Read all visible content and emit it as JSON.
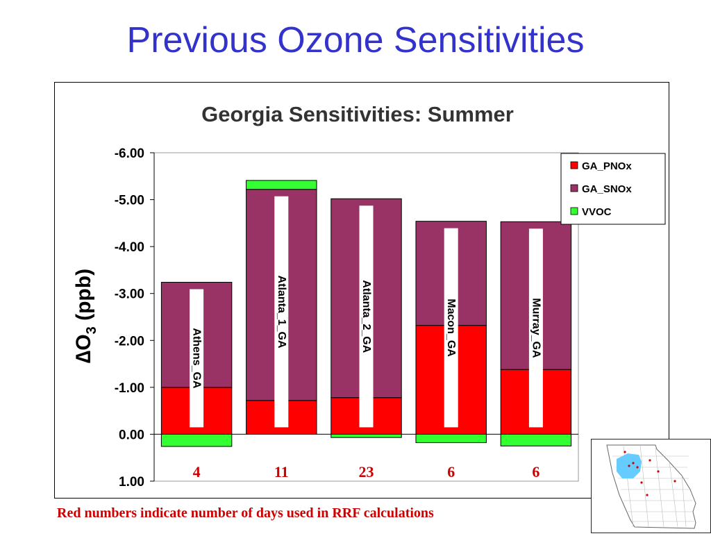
{
  "slide": {
    "title": "Previous Ozone Sensitivities",
    "footnote": "Red numbers indicate number of days used in RRF calculations"
  },
  "chart_data": {
    "type": "bar",
    "stacked": true,
    "title": "Georgia Sensitivities: Summer",
    "ylabel_prefix": "∆O",
    "ylabel_sub": "3",
    "ylabel_suffix": " (ppb)",
    "xlabel": "",
    "y_inverted": true,
    "ylim": [
      1.0,
      -6.0
    ],
    "yticks": [
      "-6.00",
      "-5.00",
      "-4.00",
      "-3.00",
      "-2.00",
      "-1.00",
      "0.00",
      "1.00"
    ],
    "ytick_values": [
      -6,
      -5,
      -4,
      -3,
      -2,
      -1,
      0,
      1
    ],
    "grid": false,
    "legend_position": "top-right",
    "categories": [
      "Athens_GA",
      "Atlanta_1_GA",
      "Atlanta_2_GA",
      "Macon_GA",
      "Murray_GA"
    ],
    "day_counts": [
      "4",
      "11",
      "23",
      "6",
      "6"
    ],
    "day_count_color": "#cc0000",
    "series": [
      {
        "name": "GA_PNOx",
        "color": "#ff0000",
        "values": [
          -1.0,
          -0.72,
          -0.78,
          -2.32,
          -1.38
        ]
      },
      {
        "name": "GA_SNOx",
        "color": "#993366",
        "values": [
          -2.24,
          -4.5,
          -4.24,
          -2.22,
          -3.15
        ]
      },
      {
        "name": "VVOC",
        "color": "#33ff33",
        "values": [
          0.26,
          -0.19,
          0.07,
          0.18,
          0.25
        ]
      }
    ]
  },
  "map": {
    "highlight_color": "#66ccff"
  }
}
